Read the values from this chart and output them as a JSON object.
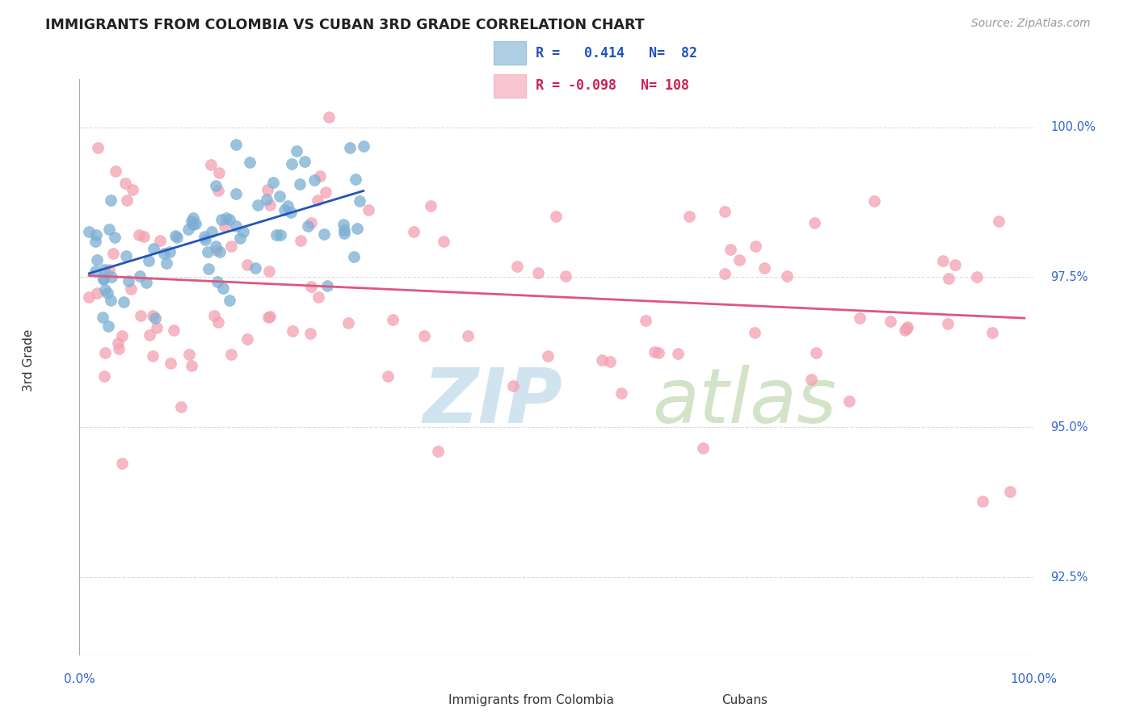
{
  "title": "IMMIGRANTS FROM COLOMBIA VS CUBAN 3RD GRADE CORRELATION CHART",
  "source": "Source: ZipAtlas.com",
  "ylabel": "3rd Grade",
  "y_tick_vals": [
    92.5,
    95.0,
    97.5,
    100.0
  ],
  "y_lim": [
    91.2,
    100.8
  ],
  "x_lim": [
    -1.0,
    101.0
  ],
  "colombia_color": "#7bafd4",
  "cuba_color": "#f4a0b0",
  "colombia_line_color": "#2255bb",
  "cuba_line_color": "#e05580",
  "background_color": "#ffffff",
  "grid_color": "#dddddd",
  "watermark_color": "#d0e4f0",
  "colombia_R": 0.414,
  "colombia_N": 82,
  "cuba_R": -0.098,
  "cuba_N": 108
}
